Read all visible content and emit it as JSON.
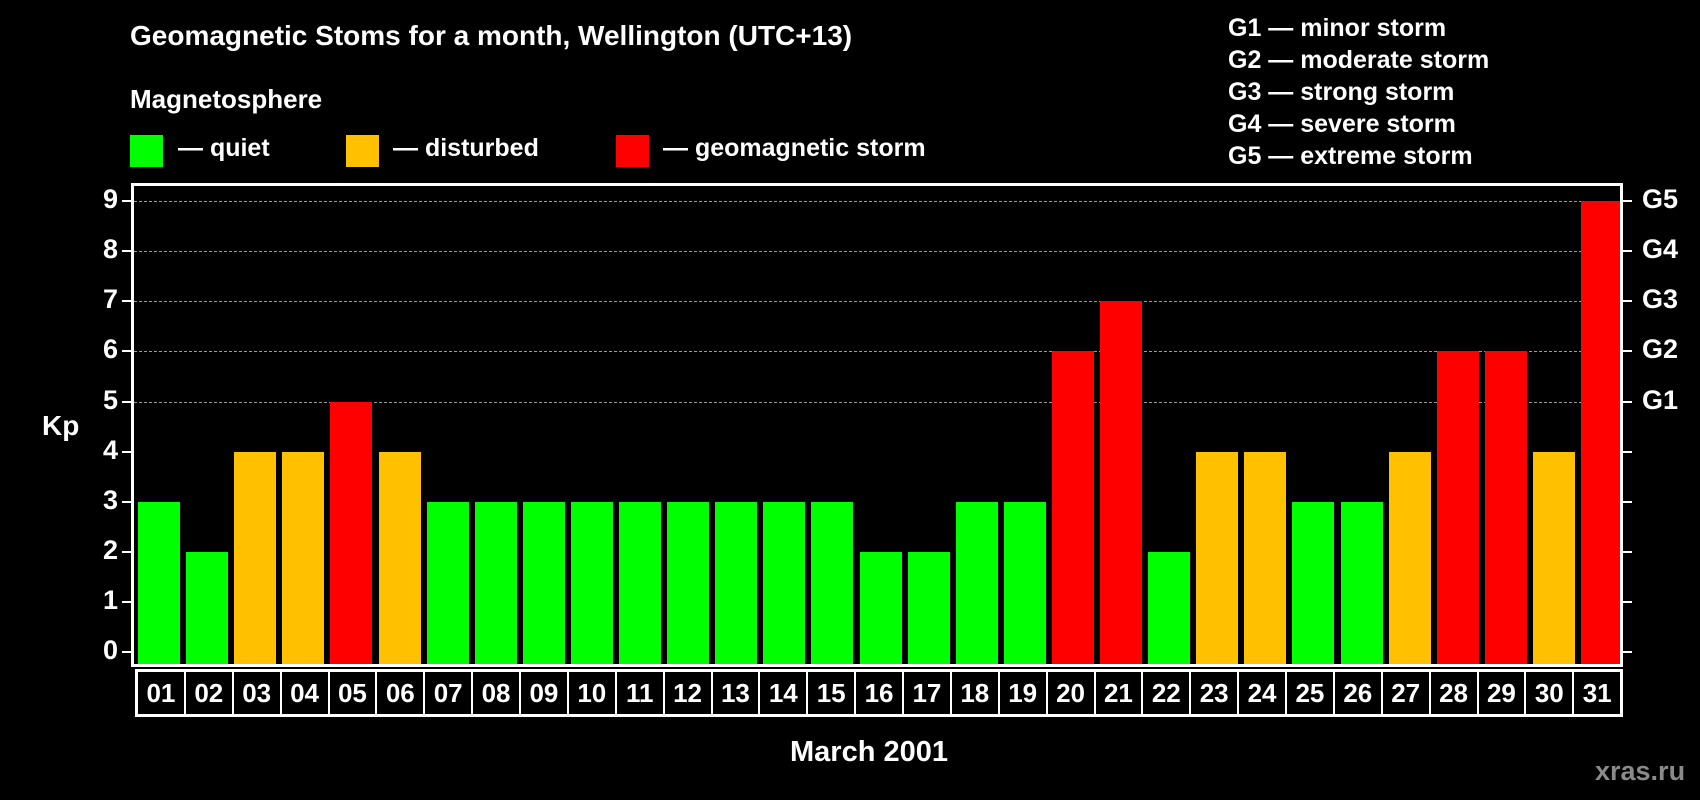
{
  "chart_data": {
    "type": "bar",
    "title": "Geomagnetic Stoms for a month, Wellington (UTC+13)",
    "subtitle": "Magnetosphere",
    "xlabel": "March 2001",
    "ylabel": "Kp",
    "ylim": [
      0,
      9
    ],
    "yticks": [
      "0",
      "1",
      "2",
      "3",
      "4",
      "5",
      "6",
      "7",
      "8",
      "9"
    ],
    "right_axis_ticks": [
      {
        "value": 5,
        "label": "G1"
      },
      {
        "value": 6,
        "label": "G2"
      },
      {
        "value": 7,
        "label": "G3"
      },
      {
        "value": 8,
        "label": "G4"
      },
      {
        "value": 9,
        "label": "G5"
      }
    ],
    "grid": "dashed horizontal at 5-9",
    "categories": [
      "01",
      "02",
      "03",
      "04",
      "05",
      "06",
      "07",
      "08",
      "09",
      "10",
      "11",
      "12",
      "13",
      "14",
      "15",
      "16",
      "17",
      "18",
      "19",
      "20",
      "21",
      "22",
      "23",
      "24",
      "25",
      "26",
      "27",
      "28",
      "29",
      "30",
      "31"
    ],
    "values": [
      3,
      2,
      4,
      4,
      5,
      4,
      3,
      3,
      3,
      3,
      3,
      3,
      3,
      3,
      3,
      2,
      2,
      3,
      3,
      6,
      7,
      2,
      4,
      4,
      3,
      3,
      4,
      6,
      6,
      4,
      9
    ],
    "status": [
      "quiet",
      "quiet",
      "disturbed",
      "disturbed",
      "storm",
      "disturbed",
      "quiet",
      "quiet",
      "quiet",
      "quiet",
      "quiet",
      "quiet",
      "quiet",
      "quiet",
      "quiet",
      "quiet",
      "quiet",
      "quiet",
      "quiet",
      "storm",
      "storm",
      "quiet",
      "disturbed",
      "disturbed",
      "quiet",
      "quiet",
      "disturbed",
      "storm",
      "storm",
      "disturbed",
      "storm"
    ],
    "legend": [
      {
        "key": "quiet",
        "label": "— quiet",
        "color": "#00ff00"
      },
      {
        "key": "disturbed",
        "label": "— disturbed",
        "color": "#ffc000"
      },
      {
        "key": "storm",
        "label": "— geomagnetic storm",
        "color": "#ff0000"
      }
    ],
    "storm_scale": [
      "G1 — minor storm",
      "G2 — moderate storm",
      "G3 — strong storm",
      "G4 — severe storm",
      "G5 — extreme storm"
    ]
  },
  "watermark": "xras.ru"
}
